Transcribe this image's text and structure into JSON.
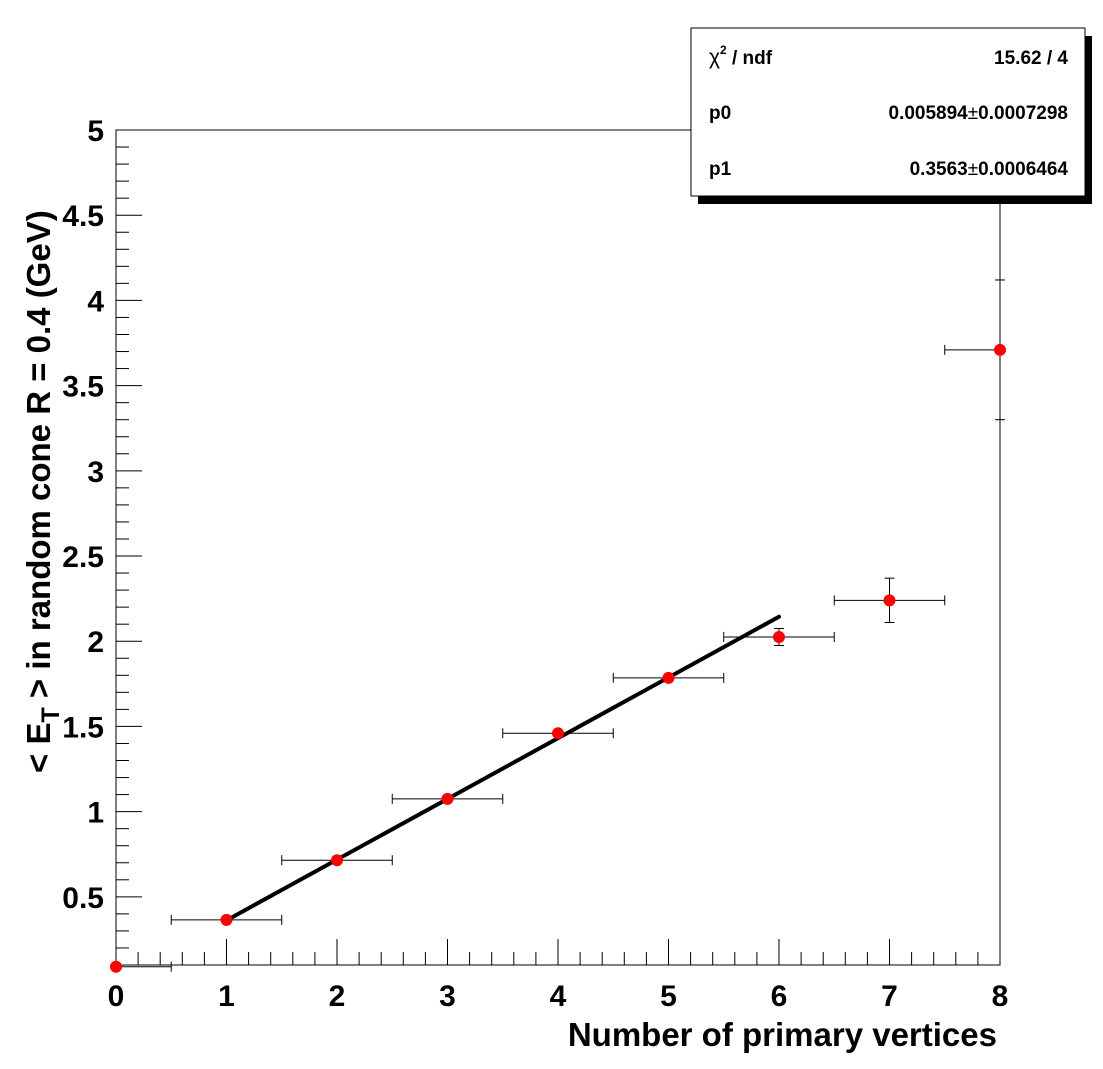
{
  "chart_data": {
    "type": "scatter",
    "xlabel": "Number of primary vertices",
    "ylabel_parts": [
      "< E",
      "T",
      " > in random cone R = 0.4 (GeV)"
    ],
    "xlim": [
      0,
      8
    ],
    "ylim": [
      0.1,
      5
    ],
    "x_ticks": [
      {
        "value": 0,
        "label": "0"
      },
      {
        "value": 1,
        "label": "1"
      },
      {
        "value": 2,
        "label": "2"
      },
      {
        "value": 3,
        "label": "3"
      },
      {
        "value": 4,
        "label": "4"
      },
      {
        "value": 5,
        "label": "5"
      },
      {
        "value": 6,
        "label": "6"
      },
      {
        "value": 7,
        "label": "7"
      },
      {
        "value": 8,
        "label": "8"
      }
    ],
    "y_ticks": [
      {
        "value": 0.5,
        "label": "0.5"
      },
      {
        "value": 1,
        "label": "1"
      },
      {
        "value": 1.5,
        "label": "1.5"
      },
      {
        "value": 2,
        "label": "2"
      },
      {
        "value": 2.5,
        "label": "2.5"
      },
      {
        "value": 3,
        "label": "3"
      },
      {
        "value": 3.5,
        "label": "3.5"
      },
      {
        "value": 4,
        "label": "4"
      },
      {
        "value": 4.5,
        "label": "4.5"
      },
      {
        "value": 5,
        "label": "5"
      }
    ],
    "points": [
      {
        "x": 0,
        "y": 0.09,
        "xerr": 0.5,
        "yerr": 0
      },
      {
        "x": 1,
        "y": 0.365,
        "xerr": 0.5,
        "yerr": 0.005
      },
      {
        "x": 2,
        "y": 0.715,
        "xerr": 0.5,
        "yerr": 0.005
      },
      {
        "x": 3,
        "y": 1.075,
        "xerr": 0.5,
        "yerr": 0.005
      },
      {
        "x": 4,
        "y": 1.46,
        "xerr": 0.5,
        "yerr": 0.01
      },
      {
        "x": 5,
        "y": 1.785,
        "xerr": 0.5,
        "yerr": 0.015
      },
      {
        "x": 6,
        "y": 2.025,
        "xerr": 0.5,
        "yerr": 0.05
      },
      {
        "x": 7,
        "y": 2.24,
        "xerr": 0.5,
        "yerr": 0.13
      },
      {
        "x": 8,
        "y": 3.71,
        "xerr": 0.5,
        "yerr": 0.41
      }
    ],
    "fit": {
      "p0": 0.005894,
      "p1": 0.3563,
      "x_range": [
        1,
        6
      ]
    },
    "colors": {
      "marker": "#ff0000",
      "fit_line": "#000000",
      "frame": "#000000"
    },
    "stats_box": {
      "chi2_symbol": "χ",
      "chi2_sup": "2",
      "chi2_label": " / ndf",
      "chi2_value": "15.62 / 4",
      "p0_label": "p0",
      "p0_value": "0.005894",
      "p0_err": "0.0007298",
      "p1_label": "p1",
      "p1_value": "0.3563",
      "p1_err": "0.0006464",
      "pm_symbol": "±"
    }
  }
}
